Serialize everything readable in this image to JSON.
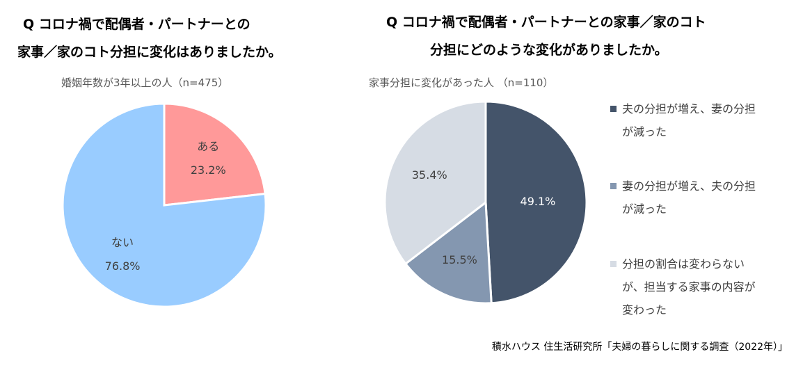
{
  "left": {
    "title_line1": "Q コロナ禍で配偶者・パートナーとの",
    "title_line2": "家事／家のコト分担に変化はありましたか。",
    "subtitle": "婚姻年数が3年以上の人（n=475）"
  },
  "right": {
    "title_line1": "Q コロナ禍で配偶者・パートナーとの家事／家のコト",
    "title_line2": "分担にどのような変化がありましたか。",
    "subtitle": "家事分担に変化があった人 （n=110）"
  },
  "source": "積水ハウス 住生活研究所「夫婦の暮らしに関する調査（2022年）」",
  "chart_data": [
    {
      "type": "pie",
      "title": "婚姻年数が3年以上の人（n=475）",
      "slices": [
        {
          "label": "ある",
          "value": 23.2,
          "value_label": "23.2%",
          "color": "#FF9999"
        },
        {
          "label": "ない",
          "value": 76.8,
          "value_label": "76.8%",
          "color": "#99CCFF"
        }
      ]
    },
    {
      "type": "pie",
      "title": "家事分担に変化があった人 （n=110）",
      "legend_position": "right",
      "slices": [
        {
          "label": "夫の分担が増え、妻の分担が減った",
          "legend_lines": [
            "夫の分担が増え、妻の分担",
            "が減った"
          ],
          "value": 49.1,
          "value_label": "49.1%",
          "color": "#44546A"
        },
        {
          "label": "妻の分担が増え、夫の分担が減った",
          "legend_lines": [
            "妻の分担が増え、夫の分担",
            "が減った"
          ],
          "value": 15.5,
          "value_label": "15.5%",
          "color": "#8497B0"
        },
        {
          "label": "分担の割合は変わらないが、担当する家事の内容が変わった",
          "legend_lines": [
            "分担の割合は変わらない",
            "が、担当する家事の内容が",
            "変わった"
          ],
          "value": 35.4,
          "value_label": "35.4%",
          "color": "#D6DCE4"
        }
      ]
    }
  ]
}
